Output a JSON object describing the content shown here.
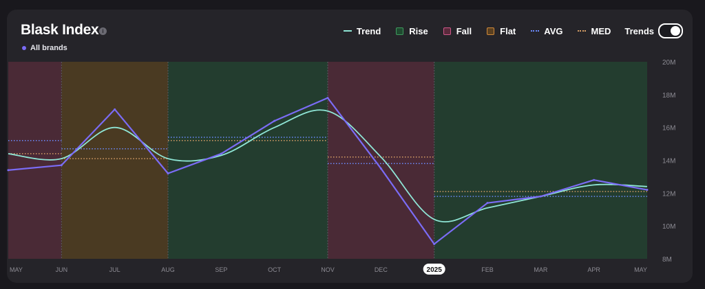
{
  "title": "Blask Index",
  "info_icon": "info-icon",
  "series_tag": "All brands",
  "legend": {
    "trend": "Trend",
    "rise": "Rise",
    "fall": "Fall",
    "flat": "Flat",
    "avg": "AVG",
    "med": "MED",
    "trends_toggle": "Trends"
  },
  "colors": {
    "line": "#7b6cf6",
    "trend": "#8fe6d6",
    "rise_bg": "#233d2f",
    "fall_bg": "#4a2a36",
    "flat_bg": "#4a3a22",
    "avg": "#6d8cff",
    "med": "#d9a067"
  },
  "chart_data": {
    "type": "line",
    "x": [
      "MAY",
      "JUN",
      "JUL",
      "AUG",
      "SEP",
      "OCT",
      "NOV",
      "DEC",
      "2025",
      "FEB",
      "MAR",
      "APR",
      "MAY"
    ],
    "highlighted_tick": "2025",
    "series": [
      {
        "name": "All brands",
        "values": [
          13.4,
          13.7,
          17.1,
          13.2,
          14.4,
          16.4,
          17.8,
          13.5,
          8.9,
          11.4,
          11.8,
          12.8,
          12.2
        ]
      }
    ],
    "trend": [
      14.4,
      14.1,
      16.0,
      14.1,
      14.3,
      16.0,
      17.0,
      14.2,
      10.4,
      11.1,
      11.8,
      12.5,
      12.4
    ],
    "y_ticks": [
      "8M",
      "10M",
      "12M",
      "14M",
      "16M",
      "18M",
      "20M"
    ],
    "ylim": [
      8,
      20
    ],
    "segments": [
      {
        "kind": "fall",
        "from": 0,
        "to": 1,
        "avg": 15.2,
        "med": 14.4
      },
      {
        "kind": "flat",
        "from": 1,
        "to": 3,
        "avg": 14.7,
        "med": 14.1
      },
      {
        "kind": "rise",
        "from": 3,
        "to": 6,
        "avg": 15.4,
        "med": 15.2
      },
      {
        "kind": "fall",
        "from": 6,
        "to": 8,
        "avg": 13.8,
        "med": 14.2
      },
      {
        "kind": "rise",
        "from": 8,
        "to": 12,
        "avg": 11.8,
        "med": 12.1
      }
    ]
  }
}
